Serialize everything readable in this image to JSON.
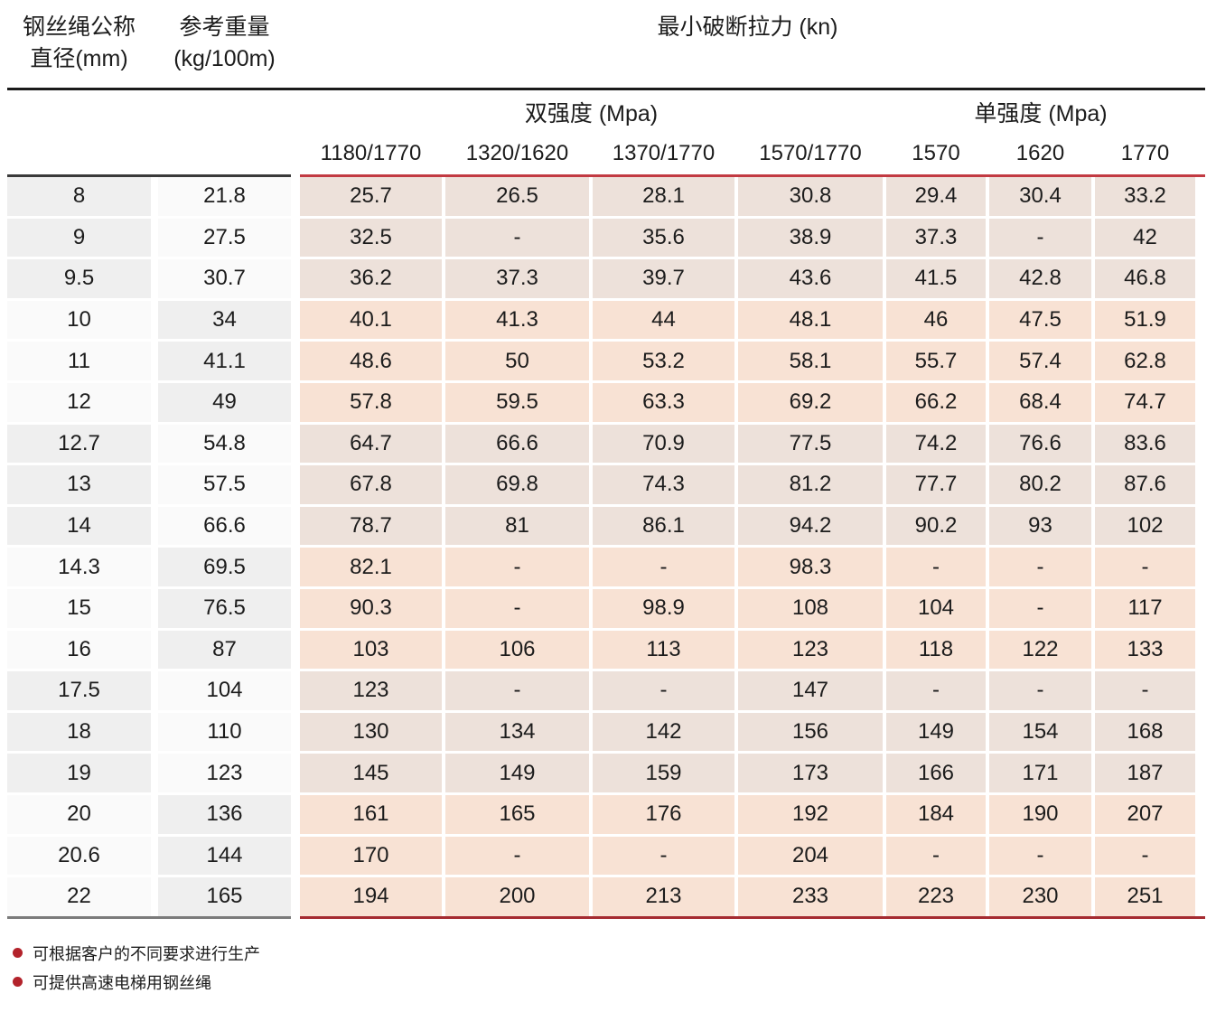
{
  "table": {
    "diameter_header": [
      "钢丝绳公称",
      "直径(mm)"
    ],
    "weight_header": [
      "参考重量",
      "(kg/100m)"
    ],
    "breaking_force_header": "最小破断拉力 (kn)",
    "dual_strength_label": "双强度 (Mpa)",
    "single_strength_label": "单强度 (Mpa)",
    "dual_columns": [
      "1180/1770",
      "1320/1620",
      "1370/1770",
      "1570/1770"
    ],
    "single_columns": [
      "1570",
      "1620",
      "1770"
    ],
    "rows": [
      {
        "diameter": "8",
        "weight": "21.8",
        "values": [
          "25.7",
          "26.5",
          "28.1",
          "30.8",
          "29.4",
          "30.4",
          "33.2"
        ]
      },
      {
        "diameter": "9",
        "weight": "27.5",
        "values": [
          "32.5",
          "-",
          "35.6",
          "38.9",
          "37.3",
          "-",
          "42"
        ]
      },
      {
        "diameter": "9.5",
        "weight": "30.7",
        "values": [
          "36.2",
          "37.3",
          "39.7",
          "43.6",
          "41.5",
          "42.8",
          "46.8"
        ]
      },
      {
        "diameter": "10",
        "weight": "34",
        "values": [
          "40.1",
          "41.3",
          "44",
          "48.1",
          "46",
          "47.5",
          "51.9"
        ]
      },
      {
        "diameter": "11",
        "weight": "41.1",
        "values": [
          "48.6",
          "50",
          "53.2",
          "58.1",
          "55.7",
          "57.4",
          "62.8"
        ]
      },
      {
        "diameter": "12",
        "weight": "49",
        "values": [
          "57.8",
          "59.5",
          "63.3",
          "69.2",
          "66.2",
          "68.4",
          "74.7"
        ]
      },
      {
        "diameter": "12.7",
        "weight": "54.8",
        "values": [
          "64.7",
          "66.6",
          "70.9",
          "77.5",
          "74.2",
          "76.6",
          "83.6"
        ]
      },
      {
        "diameter": "13",
        "weight": "57.5",
        "values": [
          "67.8",
          "69.8",
          "74.3",
          "81.2",
          "77.7",
          "80.2",
          "87.6"
        ]
      },
      {
        "diameter": "14",
        "weight": "66.6",
        "values": [
          "78.7",
          "81",
          "86.1",
          "94.2",
          "90.2",
          "93",
          "102"
        ]
      },
      {
        "diameter": "14.3",
        "weight": "69.5",
        "values": [
          "82.1",
          "-",
          "-",
          "98.3",
          "-",
          "-",
          "-"
        ]
      },
      {
        "diameter": "15",
        "weight": "76.5",
        "values": [
          "90.3",
          "-",
          "98.9",
          "108",
          "104",
          "-",
          "117"
        ]
      },
      {
        "diameter": "16",
        "weight": "87",
        "values": [
          "103",
          "106",
          "113",
          "123",
          "118",
          "122",
          "133"
        ]
      },
      {
        "diameter": "17.5",
        "weight": "104",
        "values": [
          "123",
          "-",
          "-",
          "147",
          "-",
          "-",
          "-"
        ]
      },
      {
        "diameter": "18",
        "weight": "110",
        "values": [
          "130",
          "134",
          "142",
          "156",
          "149",
          "154",
          "168"
        ]
      },
      {
        "diameter": "19",
        "weight": "123",
        "values": [
          "145",
          "149",
          "159",
          "173",
          "166",
          "171",
          "187"
        ]
      },
      {
        "diameter": "20",
        "weight": "136",
        "values": [
          "161",
          "165",
          "176",
          "192",
          "184",
          "190",
          "207"
        ]
      },
      {
        "diameter": "20.6",
        "weight": "144",
        "values": [
          "170",
          "-",
          "-",
          "204",
          "-",
          "-",
          "-"
        ]
      },
      {
        "diameter": "22",
        "weight": "165",
        "values": [
          "194",
          "200",
          "213",
          "233",
          "223",
          "230",
          "251"
        ]
      }
    ]
  },
  "notes": [
    "可根据客户的不同要求进行生产",
    "可提供高速电梯用钢丝绳"
  ],
  "colors": {
    "accent_red_rule": "#c23a42",
    "dark_rule": "#1a1a1a",
    "gray_cell": "#efefef",
    "beige_cell": "#ede1da",
    "pink_cell": "#f8e2d4",
    "note_bullet": "#b3232b"
  }
}
